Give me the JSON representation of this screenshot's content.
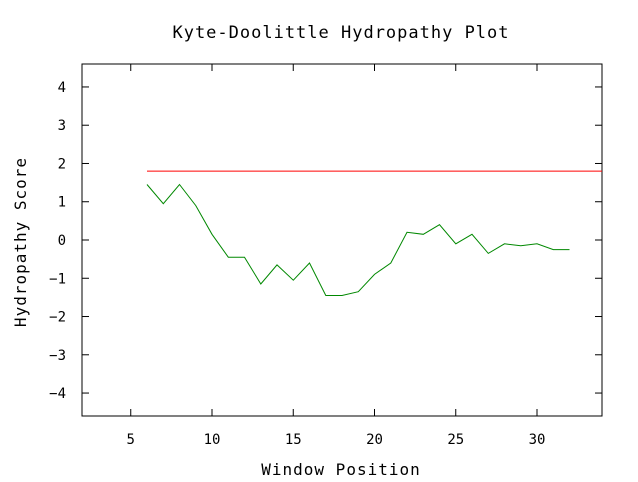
{
  "chart_data": {
    "type": "line",
    "title": "Kyte-Doolittle Hydropathy Plot",
    "xlabel": "Window Position",
    "ylabel": "Hydropathy Score",
    "xlim": [
      2,
      34
    ],
    "ylim": [
      -4.6,
      4.6
    ],
    "xticks": [
      5,
      10,
      15,
      20,
      25,
      30
    ],
    "yticks": [
      4,
      3,
      2,
      1,
      0,
      -1,
      -2,
      -3,
      -4
    ],
    "x_tick_labels": [
      "5",
      "10",
      "15",
      "20",
      "25",
      "30"
    ],
    "y_tick_labels": [
      "4",
      "3",
      "2",
      "1",
      "0",
      "−1",
      "−2",
      "−3",
      "−4"
    ],
    "grid": false,
    "series": [
      {
        "color": "#008800",
        "x": [
          6,
          7,
          8,
          9,
          10,
          11,
          12,
          13,
          14,
          15,
          16,
          17,
          18,
          19,
          20,
          21,
          22,
          23,
          24,
          25,
          26,
          27,
          28,
          29,
          30,
          31,
          32
        ],
        "values": [
          1.45,
          0.95,
          1.45,
          0.9,
          0.15,
          -0.45,
          -0.45,
          -1.15,
          -0.65,
          -1.05,
          -0.6,
          -1.45,
          -1.45,
          -1.35,
          -0.9,
          -0.6,
          0.2,
          0.15,
          0.4,
          -0.1,
          0.15,
          -0.35,
          -0.1,
          -0.15,
          -0.1,
          -0.25,
          -0.25
        ]
      }
    ],
    "threshold": {
      "color": "#ff0000",
      "x_start": 6,
      "x_end": 34,
      "y": 1.8
    }
  }
}
